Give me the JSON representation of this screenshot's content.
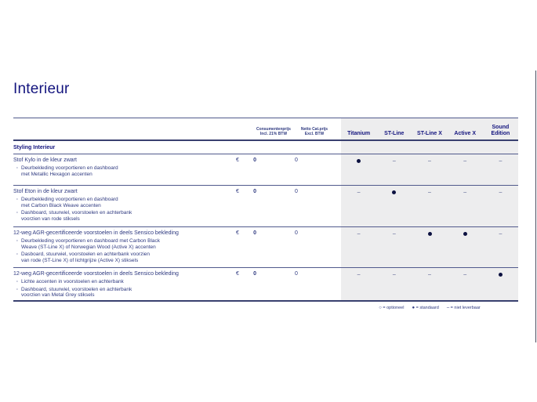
{
  "page": {
    "title": "Interieur"
  },
  "colors": {
    "brand_navy": "#13147e",
    "body_text_navy": "#2f3a80",
    "trim_area_gray": "#ededee",
    "standard_dot": "#0c1140"
  },
  "table": {
    "price_headers": [
      {
        "line1": "Consumentenprijs",
        "line2": "Incl. 21% BTW"
      },
      {
        "line1": "Netto Cat.prijs",
        "line2": "Excl. BTW"
      }
    ],
    "trim_headers": [
      "Titanium",
      "ST-Line",
      "ST-Line X",
      "Active X",
      "Sound Edition"
    ],
    "section": "Styling Interieur",
    "symbols": {
      "optional": "○",
      "standard": "●",
      "not_available": "–"
    },
    "rows": [
      {
        "title": "Stof Kylo in de kleur zwart",
        "bullets": [
          "Deurbekleding voorportieren en dashboard\nmet Metallic Hexagon accenten"
        ],
        "currency": "€",
        "price_incl": "0",
        "price_excl": "0",
        "availability": [
          "standard",
          "not_available",
          "not_available",
          "not_available",
          "not_available"
        ]
      },
      {
        "title": "Stof Eton in de kleur zwart",
        "bullets": [
          "Deurbekleding voorportieren en dashboard\nmet Carbon Black Weave accenten",
          "Dashboard, stuurwiel, voorstoelen en achterbank\nvoorzien van rode stiksels"
        ],
        "currency": "€",
        "price_incl": "0",
        "price_excl": "0",
        "availability": [
          "not_available",
          "standard",
          "not_available",
          "not_available",
          "not_available"
        ]
      },
      {
        "title": "12-weg AGR-gecertificeerde voorstoelen in deels Sensico bekleding",
        "bullets": [
          "Deurbekleding voorportieren en dashboard met Carbon Black\nWeave (ST-Line X) of Norwegian Wood (Active X) accenten",
          "Dasboard, stuurwiel, voorstoelen en achterbank voorzien\nvan rode (ST-Line X) of lichtgrijze (Active X) stiksels"
        ],
        "currency": "€",
        "price_incl": "0",
        "price_excl": "0",
        "availability": [
          "not_available",
          "not_available",
          "standard",
          "standard",
          "not_available"
        ]
      },
      {
        "title": "12-weg AGR-gecertificeerde voorstoelen in deels Sensico bekleding",
        "bullets": [
          "Lichte accenten in voorstoelen en achterbank",
          "Dashboard, stuurwiel, voorstoelen en achterbank\nvoorzien van Metal Grey stiksels"
        ],
        "currency": "€",
        "price_incl": "0",
        "price_excl": "0",
        "availability": [
          "not_available",
          "not_available",
          "not_available",
          "not_available",
          "standard"
        ]
      }
    ],
    "legend": [
      {
        "symbol": "optional",
        "label": "= optioneel"
      },
      {
        "symbol": "standard",
        "label": "= standaard"
      },
      {
        "symbol": "not_available",
        "label": "= niet leverbaar"
      }
    ]
  }
}
